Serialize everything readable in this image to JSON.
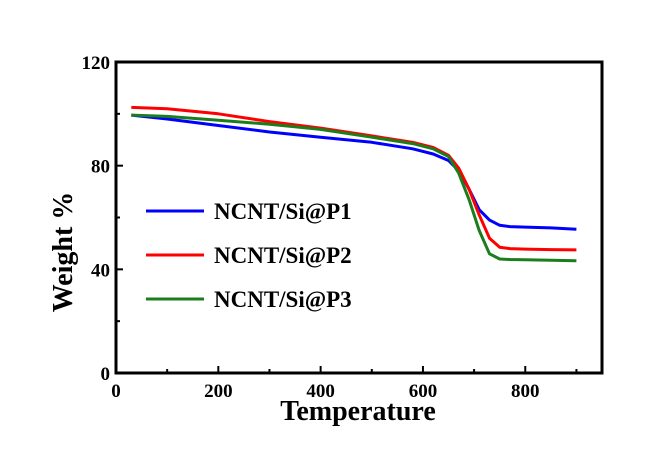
{
  "chart_data": {
    "type": "line",
    "title": "",
    "xlabel": "Temperature",
    "ylabel": "Weight %",
    "xlim": [
      0,
      950
    ],
    "ylim": [
      0,
      120
    ],
    "xticks": [
      0,
      200,
      400,
      600,
      800
    ],
    "yticks": [
      0,
      40,
      80,
      120
    ],
    "xtick_labels": [
      "0",
      "200",
      "400",
      "600",
      "800"
    ],
    "ytick_labels": [
      "0",
      "40",
      "80",
      "120"
    ],
    "grid": false,
    "legend_position": "middle-left",
    "series": [
      {
        "name": "NCNT/Si@P1",
        "color": "#0000ff",
        "x": [
          30,
          100,
          200,
          300,
          400,
          500,
          580,
          620,
          650,
          670,
          690,
          710,
          730,
          750,
          770,
          800,
          850,
          900
        ],
        "y": [
          99.5,
          98,
          95.5,
          93,
          91,
          89,
          86.5,
          84.5,
          82,
          78,
          71,
          63,
          59,
          57,
          56.5,
          56.3,
          56,
          55.5
        ]
      },
      {
        "name": "NCNT/Si@P2",
        "color": "#ff0000",
        "x": [
          30,
          100,
          200,
          300,
          400,
          500,
          580,
          620,
          650,
          670,
          690,
          710,
          730,
          750,
          770,
          800,
          850,
          900
        ],
        "y": [
          102.5,
          102,
          100,
          97,
          94.5,
          91.5,
          89,
          87,
          84,
          79,
          71,
          61,
          52,
          48.5,
          48,
          47.8,
          47.6,
          47.5
        ]
      },
      {
        "name": "NCNT/Si@P3",
        "color": "#1b7d1b",
        "x": [
          30,
          100,
          200,
          300,
          400,
          500,
          580,
          620,
          650,
          670,
          690,
          710,
          730,
          750,
          770,
          800,
          850,
          900
        ],
        "y": [
          99.5,
          99,
          97.5,
          96,
          94,
          91,
          88.5,
          86.5,
          83.5,
          77,
          67,
          55,
          46,
          44,
          43.8,
          43.7,
          43.5,
          43.3
        ]
      }
    ]
  }
}
